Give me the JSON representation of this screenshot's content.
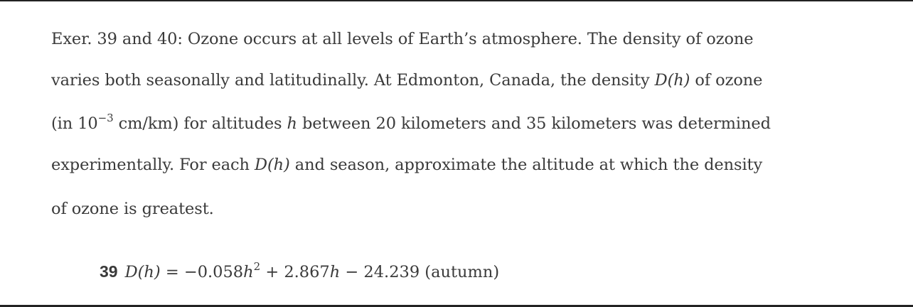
{
  "exercise": {
    "line1": "Exer. 39 and 40: Ozone occurs at all levels of Earth’s atmosphere. The density of ozone",
    "line2_a": "varies both seasonally and latitudinally. At Edmonton, Canada, the density ",
    "line2_math": "D(h)",
    "line2_b": " of ozone",
    "line3_a": "(in 10",
    "line3_sup": "−3",
    "line3_b": " cm/km) for altitudes ",
    "line3_math": "h",
    "line3_c": " between 20 kilometers and 35 kilometers was determined",
    "line4_a": "experimentally. For each ",
    "line4_math": "D(h)",
    "line4_b": " and season, approximate the altitude at which the density",
    "line5": "of ozone is greatest."
  },
  "problem": {
    "number": "39",
    "lhs": "D(h)",
    "eq_a": " = −0.058",
    "var1": "h",
    "sup": "2",
    "eq_b": " + 2.867",
    "var2": "h",
    "eq_c": " − 24.239 (autumn)"
  }
}
